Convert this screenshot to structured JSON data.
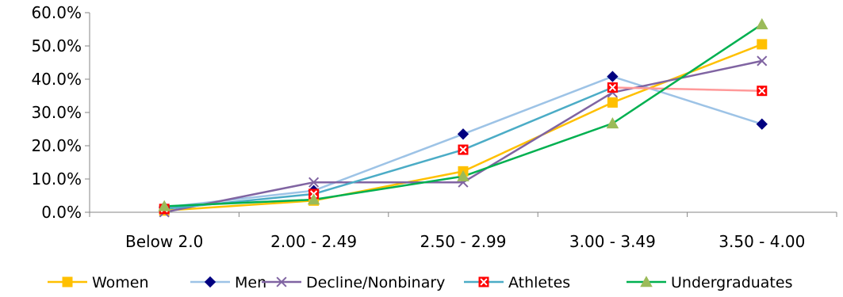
{
  "chart_data": {
    "type": "line",
    "title": "",
    "xlabel": "",
    "ylabel": "",
    "ylim": [
      0,
      60
    ],
    "y_ticks": [
      "0.0%",
      "10.0%",
      "20.0%",
      "30.0%",
      "40.0%",
      "50.0%",
      "60.0%"
    ],
    "y_tick_values": [
      0,
      10,
      20,
      30,
      40,
      50,
      60
    ],
    "categories": [
      "Below 2.0",
      "2.00 - 2.49",
      "2.50 - 2.99",
      "3.00 - 3.49",
      "3.50 - 4.00"
    ],
    "grid": false,
    "legend_position": "bottom",
    "series": [
      {
        "name": "Women",
        "color": "#FFC000",
        "marker": "square",
        "values": [
          0.5,
          3.5,
          12.3,
          33.0,
          50.5
        ]
      },
      {
        "name": "Men",
        "color": "#9DC3E6",
        "marker_color": "#000080",
        "marker": "diamond",
        "values": [
          1.5,
          6.5,
          23.5,
          40.8,
          26.5
        ]
      },
      {
        "name": "Decline/Nonbinary",
        "color": "#8064A2",
        "marker": "x",
        "values": [
          0.0,
          9.0,
          9.0,
          36.0,
          45.5
        ]
      },
      {
        "name": "Athletes",
        "color": "#4BACC6",
        "line_color": "#4BACC6",
        "last_segment_color": "#FF9999",
        "marker_color": "#FF0000",
        "marker": "boxed-x",
        "values": [
          1.0,
          5.5,
          18.8,
          37.5,
          36.5
        ]
      },
      {
        "name": "Undergraduates",
        "color": "#00B050",
        "marker_color": "#9BBB59",
        "marker": "triangle",
        "values": [
          1.8,
          3.8,
          10.8,
          26.7,
          56.5
        ]
      }
    ]
  }
}
